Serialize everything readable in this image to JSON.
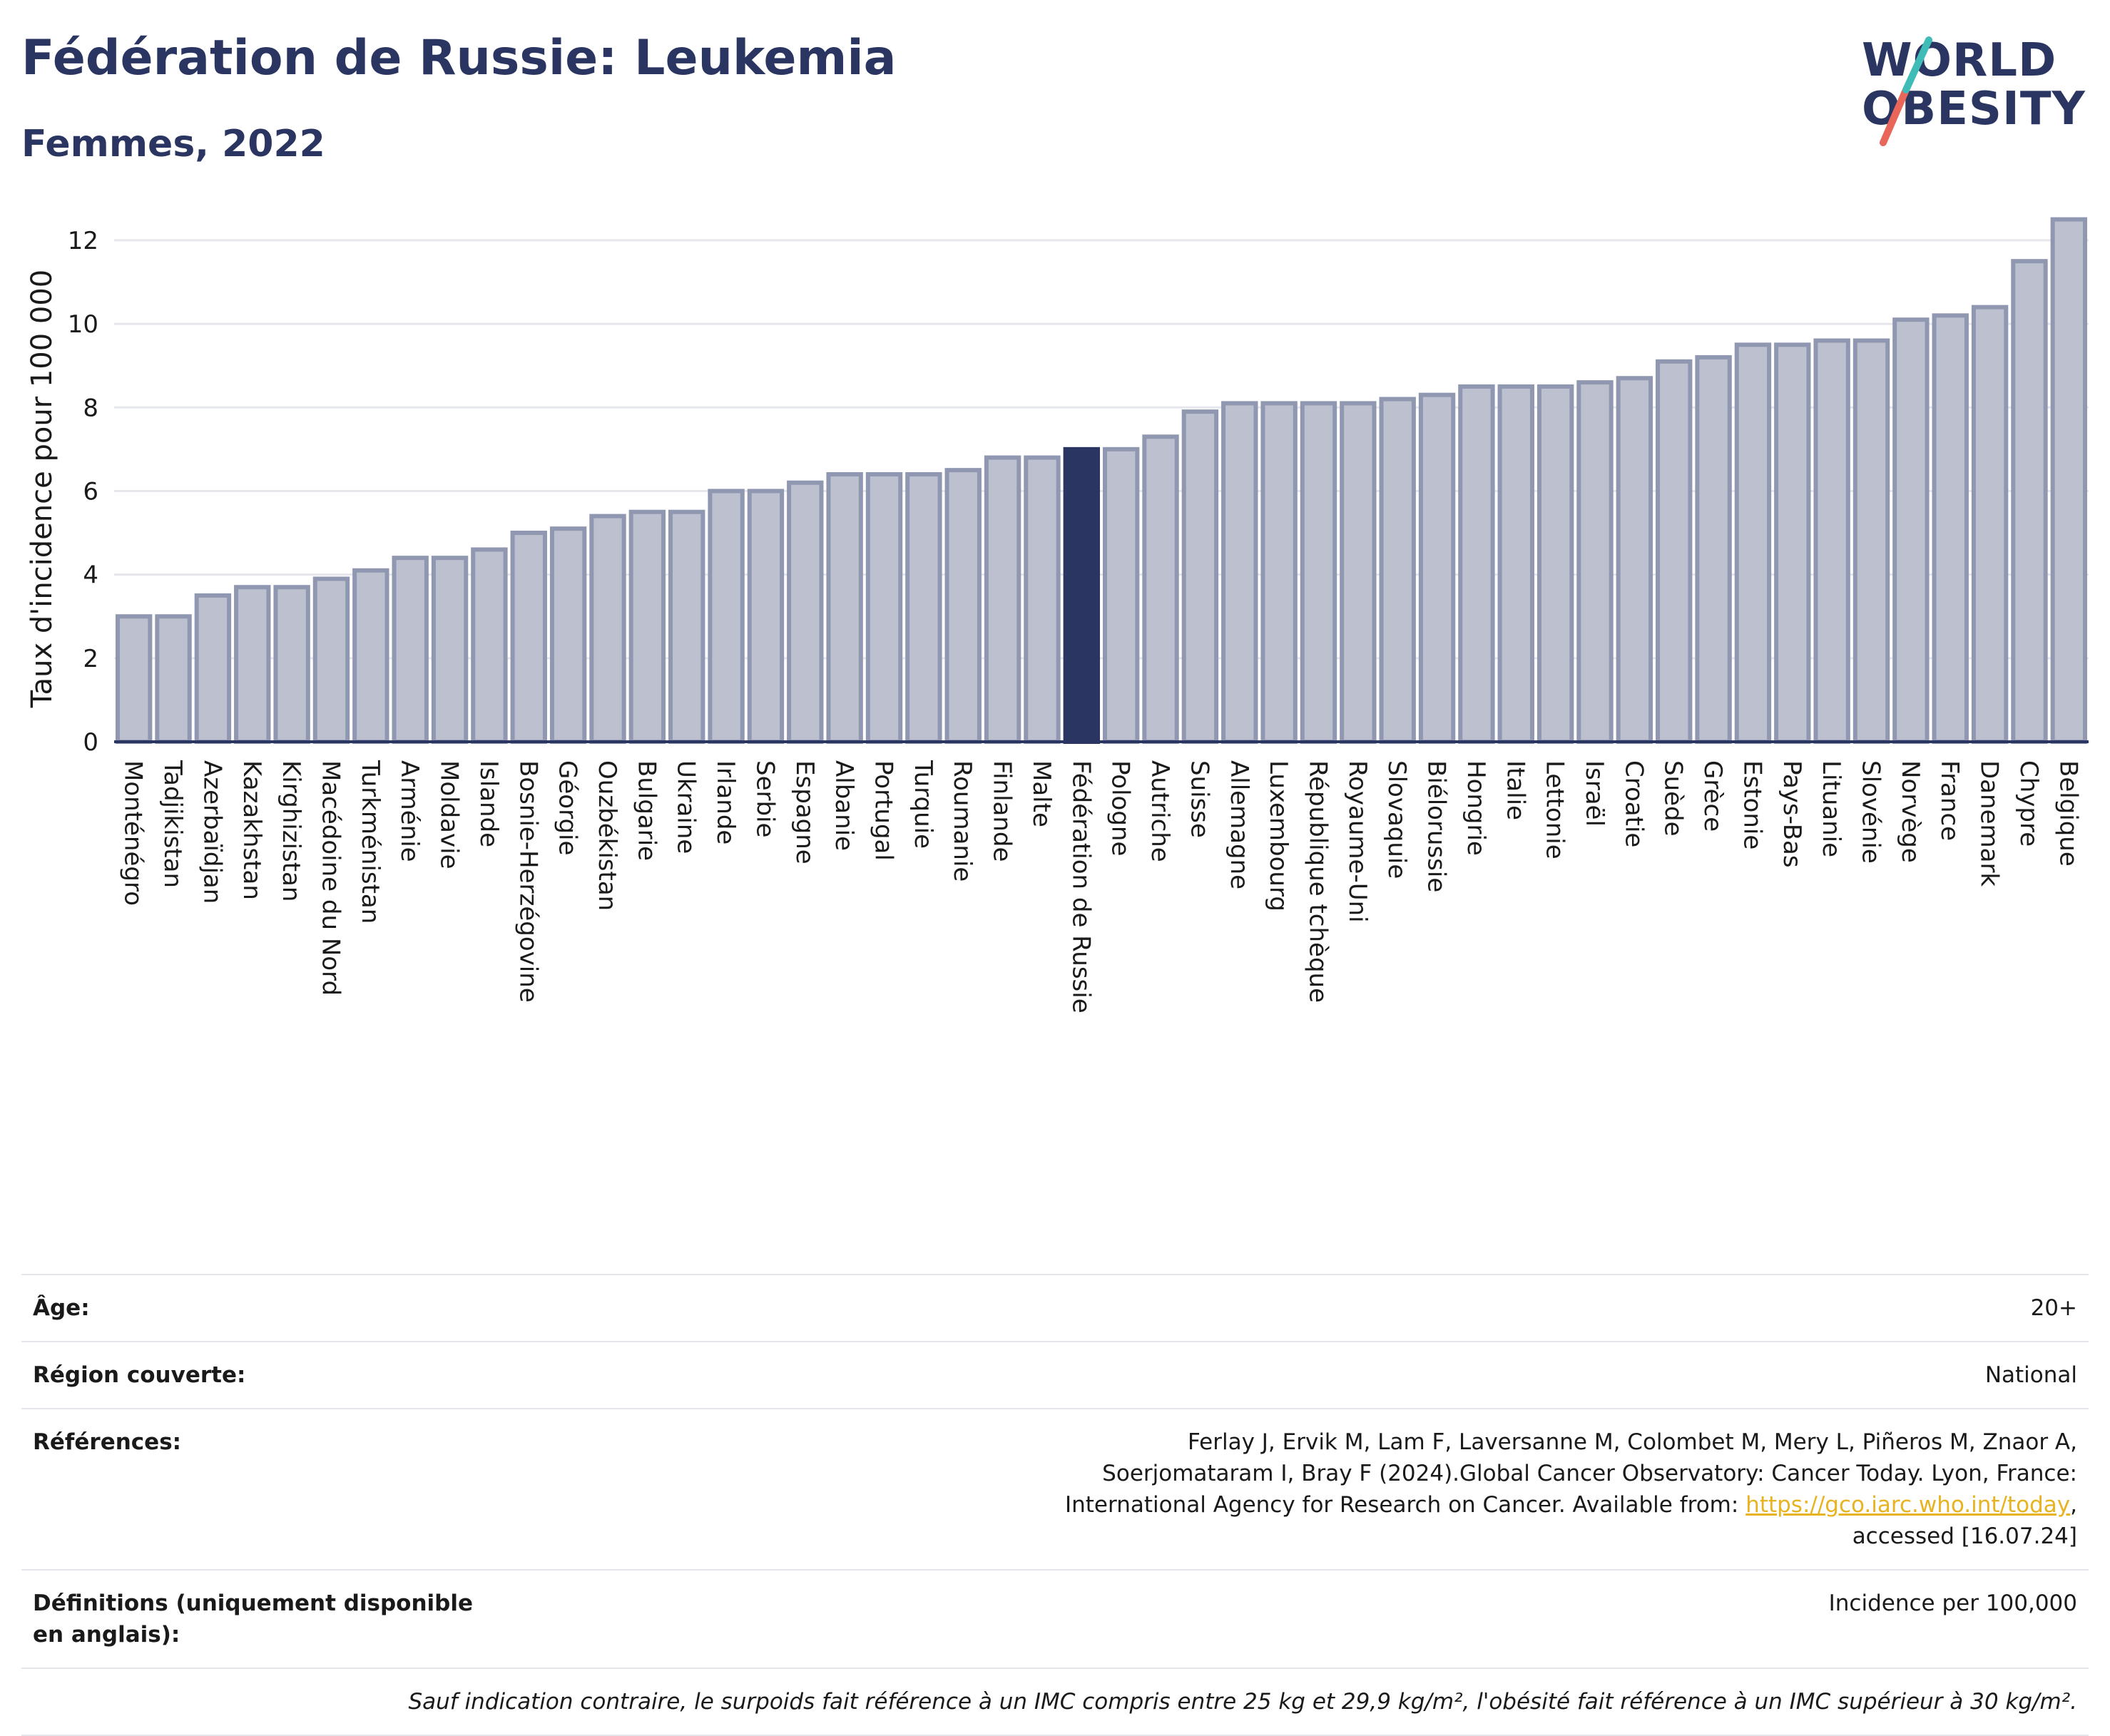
{
  "title": "Fédération de Russie: Leukemia",
  "subtitle": "Femmes, 2022",
  "logo": {
    "line1": "WORLD",
    "line2": "OBESITY",
    "slash_colors": [
      "#e8675a",
      "#3fbcb8"
    ]
  },
  "colors": {
    "bar": "#bcc0cf",
    "bar_edge": "#9097b0",
    "highlight": "#2b3561",
    "grid": "#e6e7ec",
    "text": "#2b3561"
  },
  "chart_data": {
    "type": "bar",
    "title": "Fédération de Russie: Leukemia",
    "subtitle": "Femmes, 2022",
    "xlabel": "",
    "ylabel": "Taux d'incidence pour 100 000",
    "ylim": [
      0,
      12.8
    ],
    "yticks": [
      0,
      2,
      4,
      6,
      8,
      10,
      12
    ],
    "grid": true,
    "highlight": "Fédération de Russie",
    "categories": [
      "Monténégro",
      "Tadjikistan",
      "Azerbaïdjan",
      "Kazakhstan",
      "Kirghizistan",
      "Macédoine du Nord",
      "Turkménistan",
      "Arménie",
      "Moldavie",
      "Islande",
      "Bosnie-Herzégovine",
      "Géorgie",
      "Ouzbékistan",
      "Bulgarie",
      "Ukraine",
      "Irlande",
      "Serbie",
      "Espagne",
      "Albanie",
      "Portugal",
      "Turquie",
      "Roumanie",
      "Finlande",
      "Malte",
      "Fédération de Russie",
      "Pologne",
      "Autriche",
      "Suisse",
      "Allemagne",
      "Luxembourg",
      "République tchèque",
      "Royaume-Uni",
      "Slovaquie",
      "Biélorussie",
      "Hongrie",
      "Italie",
      "Lettonie",
      "Israël",
      "Croatie",
      "Suède",
      "Grèce",
      "Estonie",
      "Pays-Bas",
      "Lituanie",
      "Slovénie",
      "Norvège",
      "France",
      "Danemark",
      "Chypre",
      "Belgique"
    ],
    "values": [
      3.0,
      3.0,
      3.5,
      3.7,
      3.7,
      3.9,
      4.1,
      4.4,
      4.4,
      4.6,
      5.0,
      5.1,
      5.4,
      5.5,
      5.5,
      6.0,
      6.0,
      6.2,
      6.4,
      6.4,
      6.4,
      6.5,
      6.8,
      6.8,
      7.0,
      7.0,
      7.3,
      7.9,
      8.1,
      8.1,
      8.1,
      8.1,
      8.2,
      8.3,
      8.5,
      8.5,
      8.5,
      8.6,
      8.7,
      9.1,
      9.2,
      9.5,
      9.5,
      9.6,
      9.6,
      10.1,
      10.2,
      10.4,
      11.5,
      12.5
    ]
  },
  "meta": {
    "age_label": "Âge:",
    "age_value": "20+",
    "region_label": "Région couverte:",
    "region_value": "National",
    "refs_label": "Références:",
    "refs_text_1": "Ferlay J, Ervik M, Lam F, Laversanne M, Colombet M, Mery L, Piñeros M, Znaor A, Soerjomataram I, Bray F (2024).Global Cancer Observatory: Cancer Today. Lyon, France: International Agency for Research on Cancer. Available from: ",
    "refs_link": "https://gco.iarc.who.int/today",
    "refs_text_2": ", accessed [16.07.24]",
    "defs_label": "Définitions (uniquement disponible en anglais):",
    "defs_value": "Incidence per 100,000",
    "note": "Sauf indication contraire, le surpoids fait référence à un IMC compris entre 25 kg et 29,9 kg/m², l'obésité fait référence à un IMC supérieur à 30 kg/m²."
  }
}
